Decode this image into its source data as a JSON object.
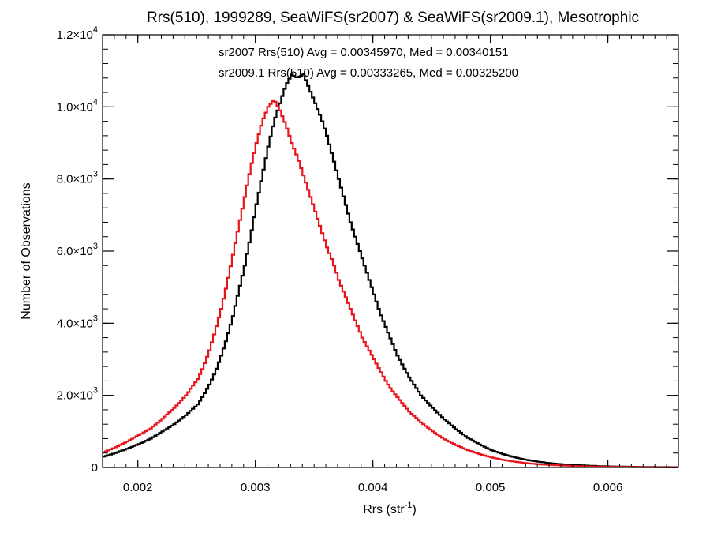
{
  "chart_data": {
    "type": "line",
    "title": "Rrs(510), 1999289, SeaWiFS(sr2007) & SeaWiFS(sr2009.1), Mesotrophic",
    "xlabel": "Rrs (str",
    "xlabel_sup": "-1",
    "xlabel_tail": ")",
    "ylabel": "Number of Observations",
    "xlim": [
      0.0017,
      0.0066
    ],
    "ylim": [
      0,
      12000
    ],
    "grid": false,
    "x_ticks": [
      {
        "value": 0.002,
        "label": "0.002"
      },
      {
        "value": 0.003,
        "label": "0.003"
      },
      {
        "value": 0.004,
        "label": "0.004"
      },
      {
        "value": 0.005,
        "label": "0.005"
      },
      {
        "value": 0.006,
        "label": "0.006"
      }
    ],
    "y_ticks": [
      {
        "value": 0,
        "label": "0",
        "exp": ""
      },
      {
        "value": 2000,
        "label": "2.0×10",
        "exp": "3"
      },
      {
        "value": 4000,
        "label": "4.0×10",
        "exp": "3"
      },
      {
        "value": 6000,
        "label": "6.0×10",
        "exp": "3"
      },
      {
        "value": 8000,
        "label": "8.0×10",
        "exp": "3"
      },
      {
        "value": 10000,
        "label": "1.0×10",
        "exp": "4"
      },
      {
        "value": 12000,
        "label": "1.2×10",
        "exp": "4"
      }
    ],
    "annotations": [
      {
        "text": "sr2007 Rrs(510) Avg = 0.00345970, Med = 0.00340151",
        "color": "#000000"
      },
      {
        "text": "sr2009.1 Rrs(510) Avg = 0.00333265, Med = 0.00325200",
        "color": "#e8141c"
      }
    ],
    "series": [
      {
        "color": "#000000",
        "x": [
          0.0017,
          0.0018,
          0.0019,
          0.002,
          0.0021,
          0.0022,
          0.0023,
          0.0024,
          0.0025,
          0.00255,
          0.0026,
          0.00265,
          0.0027,
          0.00275,
          0.0028,
          0.00285,
          0.0029,
          0.00295,
          0.003,
          0.00305,
          0.0031,
          0.00315,
          0.0032,
          0.00325,
          0.0033,
          0.00335,
          0.0034,
          0.00345,
          0.0035,
          0.00355,
          0.0036,
          0.00365,
          0.0037,
          0.00375,
          0.0038,
          0.00385,
          0.0039,
          0.00395,
          0.004,
          0.00405,
          0.0041,
          0.00415,
          0.0042,
          0.00425,
          0.0043,
          0.0044,
          0.0045,
          0.0046,
          0.0047,
          0.0048,
          0.0049,
          0.005,
          0.0051,
          0.0052,
          0.0053,
          0.0054,
          0.0055,
          0.0056,
          0.0057,
          0.0058,
          0.0059,
          0.006,
          0.0061,
          0.0062,
          0.0063,
          0.0064,
          0.0065,
          0.0066
        ],
        "y": [
          300,
          400,
          520,
          650,
          800,
          1000,
          1200,
          1450,
          1750,
          2000,
          2300,
          2650,
          3100,
          3600,
          4200,
          4900,
          5600,
          6400,
          7300,
          8100,
          8900,
          9600,
          10100,
          10600,
          10900,
          10800,
          10900,
          10500,
          10100,
          9700,
          9200,
          8600,
          8000,
          7400,
          6800,
          6300,
          5800,
          5300,
          4800,
          4300,
          3900,
          3500,
          3100,
          2800,
          2500,
          2000,
          1650,
          1330,
          1060,
          820,
          640,
          480,
          370,
          280,
          210,
          160,
          120,
          90,
          70,
          55,
          40,
          30,
          25,
          20,
          15,
          12,
          10,
          8
        ]
      },
      {
        "color": "#e8141c",
        "x": [
          0.0017,
          0.0018,
          0.0019,
          0.002,
          0.0021,
          0.0022,
          0.0023,
          0.0024,
          0.0025,
          0.00255,
          0.0026,
          0.00265,
          0.0027,
          0.00275,
          0.0028,
          0.00285,
          0.0029,
          0.00295,
          0.003,
          0.00305,
          0.0031,
          0.00315,
          0.0032,
          0.00325,
          0.0033,
          0.00335,
          0.0034,
          0.00345,
          0.0035,
          0.00355,
          0.0036,
          0.00365,
          0.0037,
          0.00375,
          0.0038,
          0.00385,
          0.0039,
          0.00395,
          0.004,
          0.00405,
          0.0041,
          0.00415,
          0.0042,
          0.00425,
          0.0043,
          0.0044,
          0.0045,
          0.0046,
          0.0047,
          0.0048,
          0.0049,
          0.005,
          0.0051,
          0.0052,
          0.0053,
          0.0054,
          0.0055,
          0.0056,
          0.0057,
          0.0058,
          0.0059,
          0.006,
          0.0061,
          0.0062,
          0.0063,
          0.0064,
          0.0065,
          0.0066
        ],
        "y": [
          420,
          560,
          720,
          900,
          1080,
          1350,
          1650,
          2000,
          2450,
          2800,
          3250,
          3800,
          4400,
          5100,
          5900,
          6700,
          7500,
          8300,
          9000,
          9600,
          10000,
          10200,
          9900,
          9500,
          9000,
          8600,
          8100,
          7600,
          7100,
          6600,
          6100,
          5700,
          5200,
          4800,
          4400,
          4000,
          3600,
          3300,
          3000,
          2700,
          2400,
          2150,
          1950,
          1750,
          1550,
          1250,
          1000,
          780,
          620,
          480,
          370,
          280,
          210,
          160,
          120,
          90,
          70,
          55,
          42,
          32,
          25,
          20,
          15,
          12,
          9,
          7,
          5,
          4
        ]
      }
    ]
  }
}
